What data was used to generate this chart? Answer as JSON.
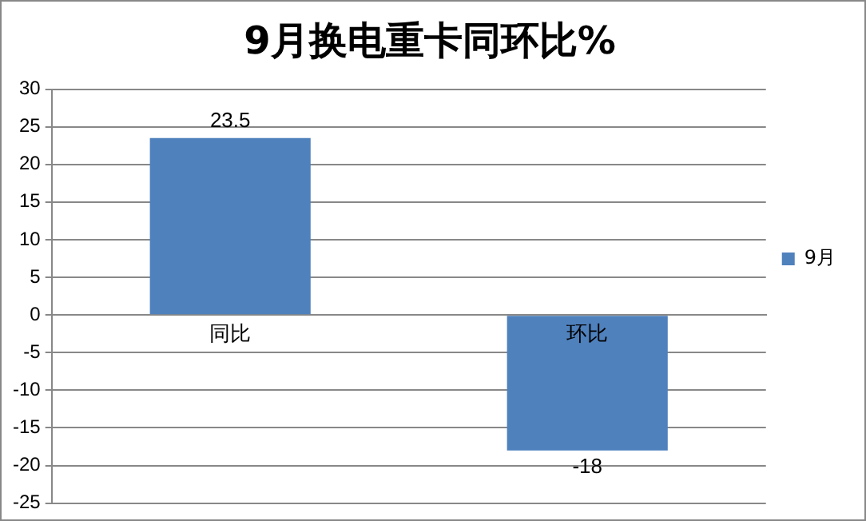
{
  "chart_data": {
    "type": "bar",
    "title": "9月换电重卡同环比%",
    "categories": [
      "同比",
      "环比"
    ],
    "series": [
      {
        "name": "9月",
        "color": "#4f81bd",
        "values": [
          23.5,
          -18
        ]
      }
    ],
    "ylim": [
      -25,
      30
    ],
    "yticks": [
      -25,
      -20,
      -15,
      -10,
      -5,
      0,
      5,
      10,
      15,
      20,
      25,
      30
    ],
    "grid": "y",
    "legend": "right",
    "data_labels": true
  }
}
